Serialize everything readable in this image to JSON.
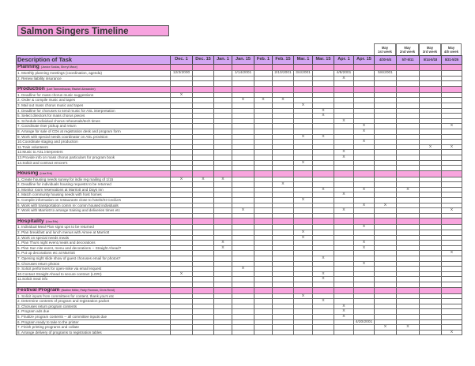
{
  "title": "Salmon Singers Timeline",
  "header": {
    "description": "Description of Task"
  },
  "mark": "X",
  "colors": {
    "title_bg": "#f7a3df",
    "header_bg": "#d2a6f2",
    "section_bg": "#f8a5de"
  },
  "columns": [
    {
      "key": "dec1",
      "label": "Dec. 1"
    },
    {
      "key": "dec15",
      "label": "Dec. 15"
    },
    {
      "key": "jan1",
      "label": "Jan. 1"
    },
    {
      "key": "jan15",
      "label": "Jan. 15"
    },
    {
      "key": "feb1",
      "label": "Feb. 1"
    },
    {
      "key": "feb15",
      "label": "Feb. 15"
    },
    {
      "key": "mar1",
      "label": "Mar. 1"
    },
    {
      "key": "mar15",
      "label": "Mar. 15"
    },
    {
      "key": "apr1",
      "label": "Apr. 1"
    },
    {
      "key": "apr15",
      "label": "Apr. 15"
    },
    {
      "key": "may1",
      "label": "4/30-5/4",
      "month": "May",
      "week": "1st week"
    },
    {
      "key": "may2",
      "label": "5/7-5/11",
      "month": "May",
      "week": "2nd week"
    },
    {
      "key": "may3",
      "label": "5/14-5/18",
      "month": "May",
      "week": "3rd week"
    },
    {
      "key": "may4",
      "label": "5/21-5/25",
      "month": "May",
      "week": "4th week"
    }
  ],
  "sections": [
    {
      "name": "Planning",
      "people": "(Janice Scalza, Sheryl Mase)",
      "tasks": [
        {
          "text": "1.  Monthly planning meetings (coordination, agenda)",
          "marked": [],
          "dates": {
            "dec1": "12/3/2000",
            "jan15": "1/14/2001",
            "feb15": "2/10/2001",
            "mar1": "3/4/2001",
            "apr1": "4/8/2001",
            "may1": "5/6/2001"
          }
        },
        {
          "text": "2.  Renew liability insurance",
          "marked": [
            "apr1"
          ]
        }
      ]
    },
    {
      "name": "Production",
      "people": "(Lori Tonnenhouse, Rachel Alexander)",
      "tasks": [
        {
          "text": "1.  Deadline for mass chorus music suggestions",
          "marked": [
            "dec1"
          ]
        },
        {
          "text": "2.  Order & compile music and tapes",
          "marked": [
            "jan15",
            "feb1",
            "feb15"
          ]
        },
        {
          "text": "3.  Mail out mass chorus music and tapes",
          "marked": [
            "mar1"
          ]
        },
        {
          "text": "4.  Deadline for choruses to send music for ASL interpretation",
          "marked": [
            "mar15"
          ]
        },
        {
          "text": "5.  Select directors for mass chorus pieces",
          "marked": [
            "mar15"
          ]
        },
        {
          "text": "6.  Schedule individual chorus rehearsals/tech times",
          "marked": [
            "apr1"
          ]
        },
        {
          "text": "7.  Coordinate riser pickup and return",
          "marked": [
            "apr15",
            "may4"
          ]
        },
        {
          "text": "8.  Arrange for sale of CDs at registration desk and program form",
          "marked": [
            "apr15"
          ]
        },
        {
          "text": "9.  Work with special needs coordinator on ASL provision",
          "marked": [
            "mar1",
            "mar15"
          ]
        },
        {
          "text": "10.Coordinate staging and production",
          "marked": [
            "apr15"
          ]
        },
        {
          "text": "11.Train volunteers",
          "marked": [
            "may3",
            "may4"
          ]
        },
        {
          "text": "12.Music to ASL interpreters",
          "marked": [
            "apr1"
          ]
        },
        {
          "text": "13.Provide info on mass chorus particulars for program book",
          "marked": [
            "apr1"
          ]
        },
        {
          "text": "14.Solicit and contract emcee's",
          "marked": [
            "mar1"
          ]
        }
      ]
    },
    {
      "name": "Housing",
      "people": "(Lisa Erb)",
      "tasks": [
        {
          "text": "1.  Create housing needs survey for indiv reg mailing of 1/15",
          "marked": [
            "dec1",
            "dec15",
            "jan1"
          ]
        },
        {
          "text": "2.  Deadline for individuals housing requests to be returned",
          "marked": [
            "feb15"
          ]
        },
        {
          "text": "3.  Monitor room reservations at Marriott and Days Inn",
          "marked": [
            "mar15",
            "apr15",
            "may2"
          ]
        },
        {
          "text": "4.  Match community housing needs with host homes",
          "marked": [
            "apr1"
          ]
        },
        {
          "text": "5.  Compile information on restaurants close to hotels/St Cecilia's",
          "marked": [
            "mar1"
          ]
        },
        {
          "text": "6.  Work with transportation comm re: comm housed individuals",
          "marked": [
            "apr15",
            "may1"
          ]
        },
        {
          "text": "7.  Work with Marriott to arrange training and deliveries times etc",
          "marked": [
            "jan15",
            "apr1",
            "may4"
          ]
        }
      ]
    },
    {
      "name": "Hospitality",
      "people": "(Lisa Erb)",
      "tasks": [
        {
          "text": "1.  Individual Meal Plan signs ups to be returned",
          "marked": [
            "apr15"
          ]
        },
        {
          "text": "2.  Plan breakfast and lunch menus with Aimee at Marriott",
          "marked": [
            "mar1"
          ]
        },
        {
          "text": "3.  Work on special needs meals",
          "marked": [
            "mar1"
          ]
        },
        {
          "text": "4.  Plan Thurs night event,meals and decorations",
          "marked": [
            "jan1",
            "apr15"
          ]
        },
        {
          "text": "5.  Plan Sun nite event, menu and decorations -- Straight Ahead?",
          "marked": [
            "jan1",
            "apr15"
          ]
        },
        {
          "text": "6.  Put up decorations etc at Marriott",
          "marked": [
            "may4"
          ]
        },
        {
          "text": "7.  Opening night slide show of guest choruses email for photos?",
          "marked": [
            "mar15"
          ]
        },
        {
          "text": "8.  Choruses return photos",
          "marked": [
            "apr15"
          ]
        },
        {
          "text": "9.  Solicit performers for open-mike via email request",
          "marked": [
            "jan15"
          ]
        },
        {
          "text": "10.Contact Straight Ahead to secure contract (LORI)",
          "marked": [
            "dec1",
            "mar15"
          ]
        },
        {
          "text": "11.Solicit meal info",
          "marked": [
            "mar15"
          ]
        }
      ]
    },
    {
      "name": "Festival Program",
      "people": "(Nadine Miller, Patty Florman, Chris Reed)",
      "tasks": [
        {
          "text": "1.  Solicit inputs from committees for content, thank you's etc",
          "marked": [
            "mar1"
          ]
        },
        {
          "text": "2.  Determine contents of program and registration packet",
          "marked": [
            "mar15"
          ]
        },
        {
          "text": "3.  Choruses return program contents",
          "marked": [
            "apr1"
          ]
        },
        {
          "text": "4.  Program ads due",
          "marked": [
            "apr1"
          ]
        },
        {
          "text": "5.  Finalize program contents -- all committee inputs due",
          "marked": [
            "apr1"
          ]
        },
        {
          "text": "6.  Program ready to take to the printer",
          "marked": [],
          "dates": {
            "apr15": "4/20/2001"
          }
        },
        {
          "text": "7.  Finish printing programs and collate",
          "marked": [
            "may1",
            "may2"
          ]
        },
        {
          "text": "8.  Arrange delivery of programs to registration tables",
          "marked": [
            "may4"
          ]
        }
      ]
    }
  ]
}
